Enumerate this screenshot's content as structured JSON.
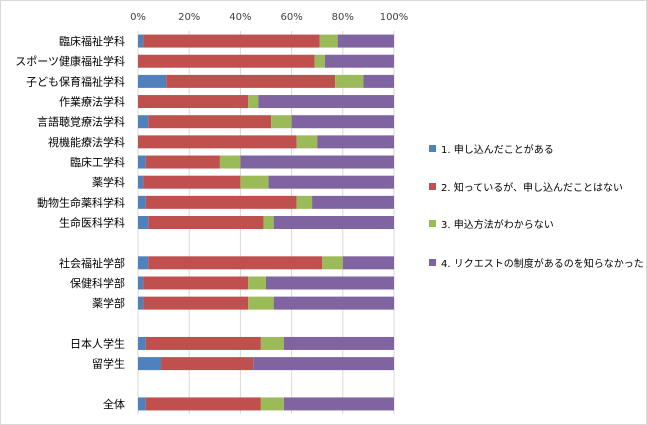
{
  "chart_data": {
    "type": "bar",
    "orientation": "horizontal",
    "stacked": "percent",
    "title": "",
    "xlabel": "",
    "ylabel": "",
    "xlim": [
      0,
      100
    ],
    "x_ticks": [
      "0%",
      "20%",
      "40%",
      "60%",
      "80%",
      "100%"
    ],
    "x_axis_position": "top",
    "gridlines": true,
    "legend_position": "right",
    "categories": [
      "臨床福祉学科",
      "スポーツ健康福祉学科",
      "子ども保育福祉学科",
      "作業療法学科",
      "言語聴覚療法学科",
      "視機能療法学科",
      "臨床工学科",
      "薬学科",
      "動物生命薬科学科",
      "生命医科学科",
      "",
      "社会福祉学部",
      "保健科学部",
      "薬学部",
      "",
      "日本人学生",
      "留学生",
      "",
      "全体"
    ],
    "series": [
      {
        "name": "1. 申し込んだことがある",
        "color": "#4f81bd",
        "values": [
          2,
          0,
          11,
          0,
          4,
          0,
          3,
          2,
          3,
          4,
          null,
          4,
          2,
          2,
          null,
          3,
          9,
          null,
          3
        ]
      },
      {
        "name": "2. 知っているが、申し込んだことはない",
        "color": "#c0504d",
        "values": [
          69,
          69,
          66,
          43,
          48,
          62,
          29,
          38,
          59,
          45,
          null,
          68,
          41,
          41,
          null,
          45,
          36,
          null,
          45
        ]
      },
      {
        "name": "3. 申込方法がわからない",
        "color": "#9bbb59",
        "values": [
          7,
          4,
          11,
          4,
          8,
          8,
          8,
          11,
          6,
          4,
          null,
          8,
          7,
          10,
          null,
          9,
          0,
          null,
          9
        ]
      },
      {
        "name": "4. リクエストの制度があるのを知らなかった",
        "color": "#8064a2",
        "values": [
          22,
          27,
          12,
          53,
          40,
          30,
          60,
          49,
          32,
          47,
          null,
          20,
          50,
          47,
          null,
          43,
          55,
          null,
          43
        ]
      }
    ]
  }
}
